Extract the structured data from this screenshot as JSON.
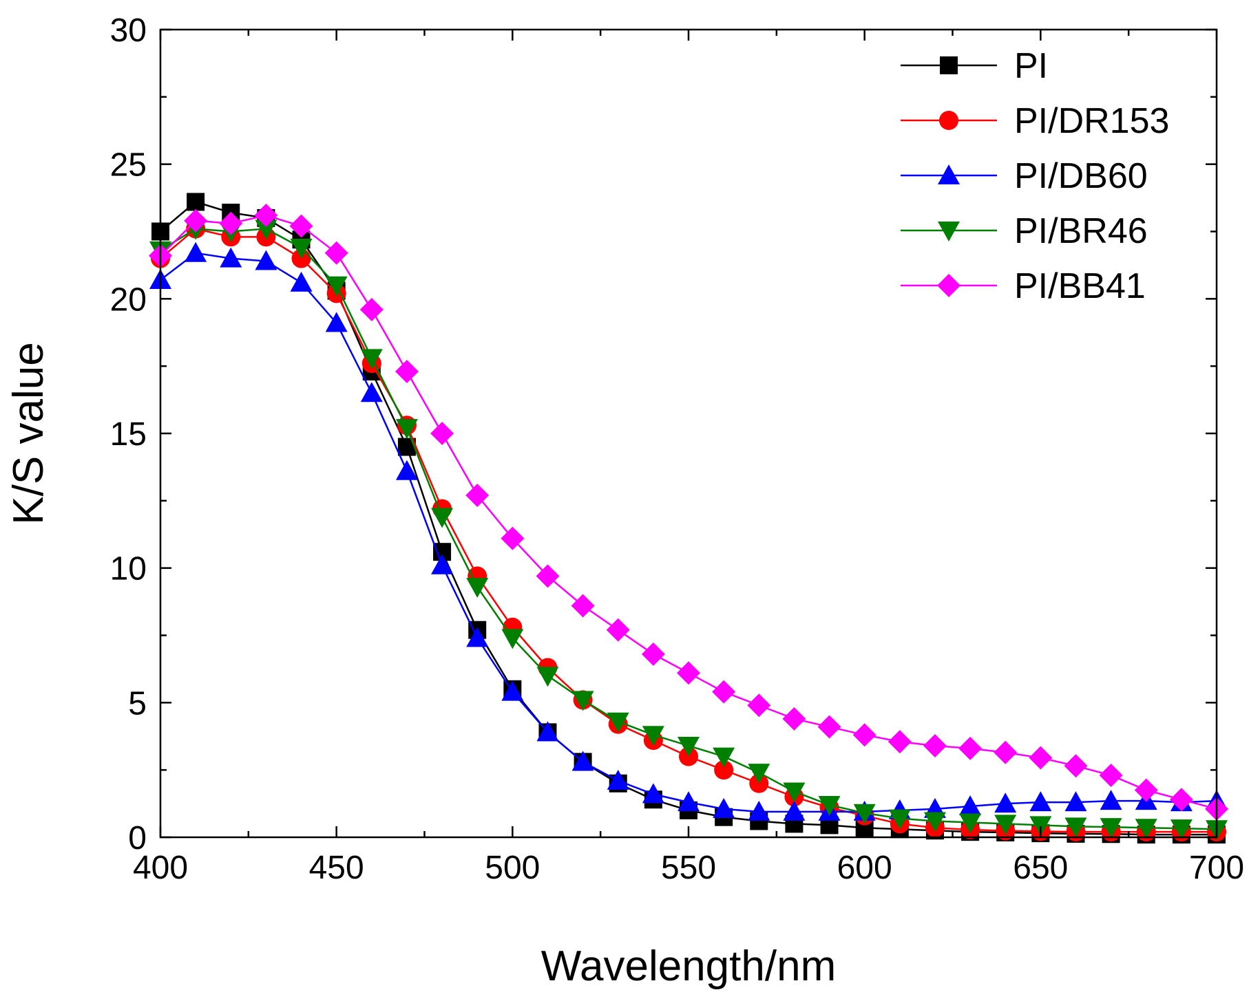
{
  "chart_data": {
    "type": "line",
    "title": "",
    "xlabel": "Wavelength/nm",
    "ylabel": "K/S value",
    "xlim": [
      400,
      700
    ],
    "ylim": [
      0,
      30
    ],
    "xticks": [
      400,
      450,
      500,
      550,
      600,
      650,
      700
    ],
    "yticks": [
      0,
      5,
      10,
      15,
      20,
      25,
      30
    ],
    "xtick_labels": [
      "400",
      "450",
      "500",
      "550",
      "600",
      "650",
      "700"
    ],
    "ytick_labels": [
      "0",
      "5",
      "10",
      "15",
      "20",
      "25",
      "30"
    ],
    "grid": false,
    "legend_position": "top-right",
    "x": [
      400,
      410,
      420,
      430,
      440,
      450,
      460,
      470,
      480,
      490,
      500,
      510,
      520,
      530,
      540,
      550,
      560,
      570,
      580,
      590,
      600,
      610,
      620,
      630,
      640,
      650,
      660,
      670,
      680,
      690,
      700
    ],
    "series": [
      {
        "name": "PI",
        "color": "#000000",
        "marker": "square",
        "values": [
          22.5,
          23.6,
          23.2,
          23.0,
          22.2,
          20.3,
          17.3,
          14.5,
          10.6,
          7.7,
          5.5,
          3.9,
          2.8,
          2.0,
          1.4,
          1.0,
          0.75,
          0.6,
          0.5,
          0.45,
          0.35,
          0.3,
          0.25,
          0.2,
          0.18,
          0.15,
          0.13,
          0.12,
          0.1,
          0.1,
          0.1
        ]
      },
      {
        "name": "PI/DR153",
        "color": "#ff0000",
        "marker": "circle",
        "values": [
          21.5,
          22.6,
          22.3,
          22.3,
          21.5,
          20.2,
          17.6,
          15.3,
          12.2,
          9.7,
          7.8,
          6.3,
          5.1,
          4.2,
          3.6,
          3.0,
          2.5,
          2.0,
          1.5,
          1.1,
          0.8,
          0.5,
          0.35,
          0.28,
          0.24,
          0.22,
          0.2,
          0.2,
          0.2,
          0.2,
          0.2
        ]
      },
      {
        "name": "PI/DB60",
        "color": "#0000ff",
        "marker": "triangle-up",
        "values": [
          20.7,
          21.7,
          21.5,
          21.4,
          20.6,
          19.1,
          16.5,
          13.6,
          10.1,
          7.4,
          5.4,
          3.9,
          2.8,
          2.1,
          1.6,
          1.3,
          1.05,
          0.95,
          0.95,
          0.95,
          0.95,
          1.0,
          1.05,
          1.15,
          1.25,
          1.3,
          1.3,
          1.35,
          1.35,
          1.3,
          1.35
        ]
      },
      {
        "name": "PI/BR46",
        "color": "#007f00",
        "marker": "triangle-down",
        "values": [
          21.8,
          22.6,
          22.5,
          22.6,
          21.9,
          20.5,
          17.8,
          15.2,
          11.9,
          9.3,
          7.4,
          6.0,
          5.1,
          4.3,
          3.8,
          3.4,
          3.0,
          2.4,
          1.7,
          1.2,
          0.9,
          0.7,
          0.6,
          0.55,
          0.5,
          0.45,
          0.4,
          0.38,
          0.35,
          0.33,
          0.3
        ]
      },
      {
        "name": "PI/BB41",
        "color": "#ff00ff",
        "marker": "diamond",
        "values": [
          21.6,
          22.9,
          22.8,
          23.1,
          22.7,
          21.7,
          19.6,
          17.3,
          15.0,
          12.7,
          11.1,
          9.7,
          8.6,
          7.7,
          6.8,
          6.1,
          5.4,
          4.9,
          4.4,
          4.1,
          3.8,
          3.55,
          3.4,
          3.3,
          3.15,
          2.95,
          2.65,
          2.3,
          1.75,
          1.4,
          1.05
        ]
      }
    ]
  }
}
